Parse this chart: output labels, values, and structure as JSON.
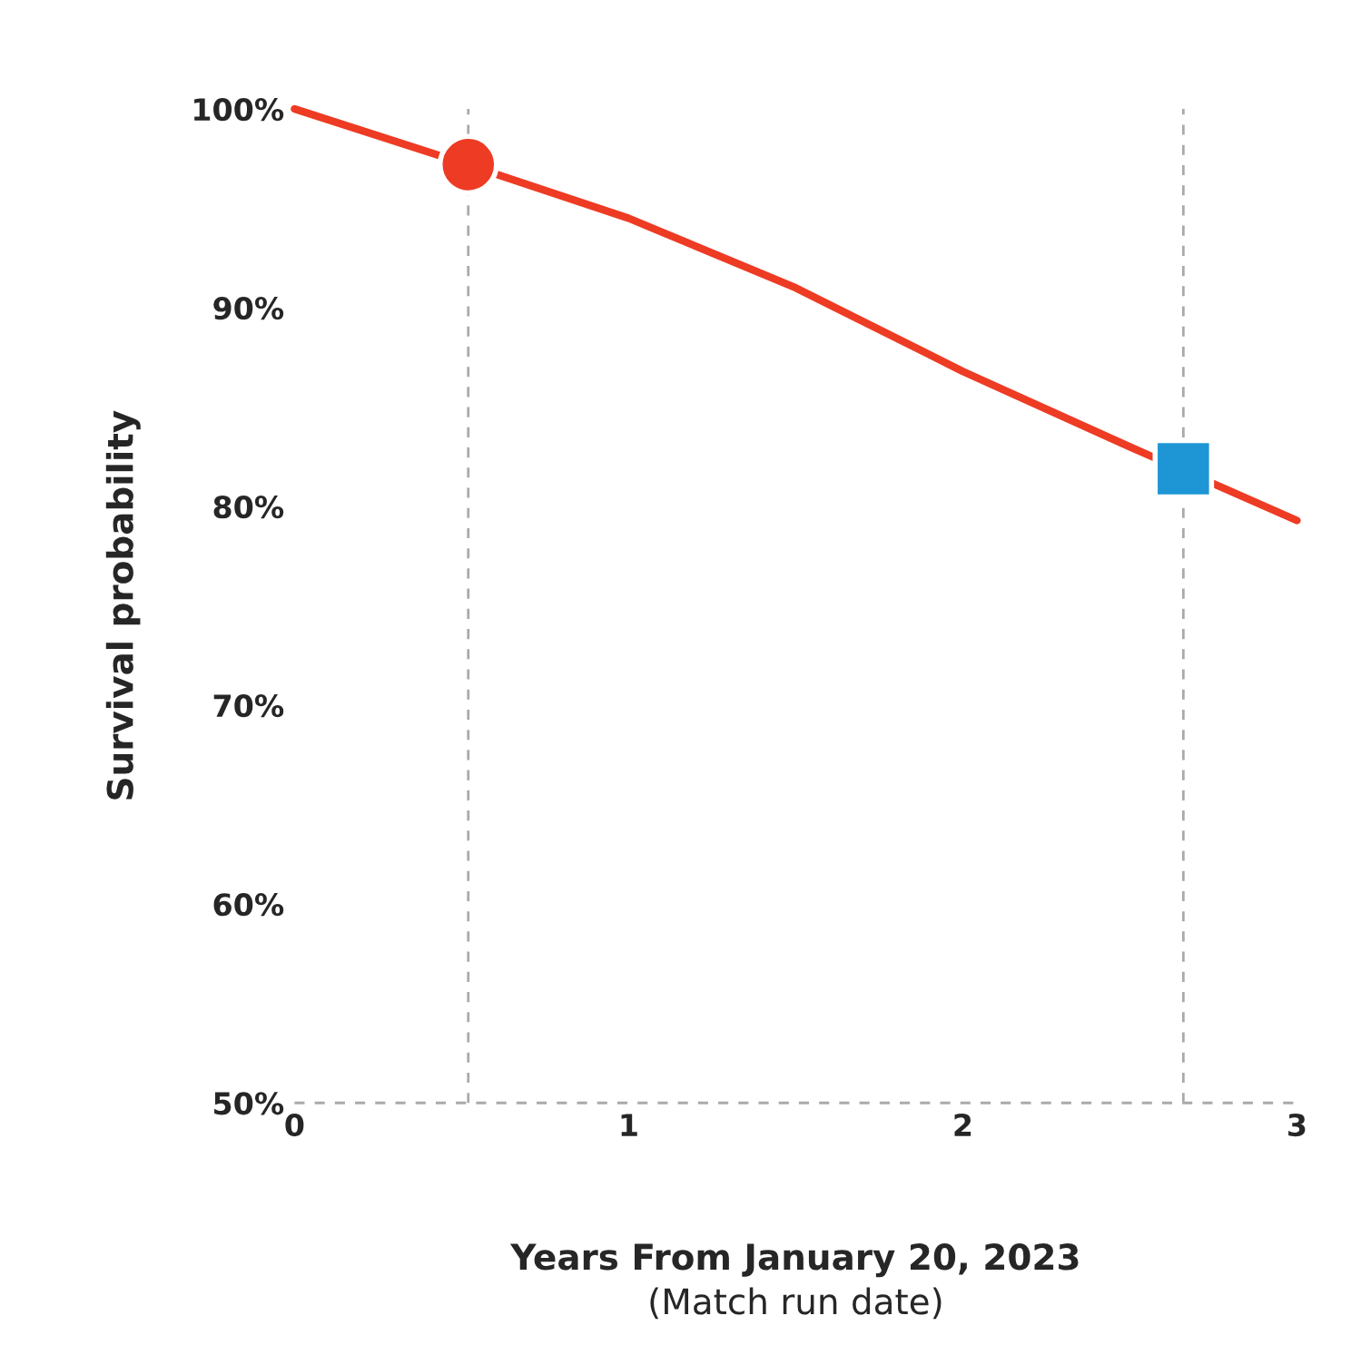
{
  "chart_data": {
    "type": "line",
    "xlabel": "Years From January 20, 2023\n(Match run date)",
    "ylabel": "Survival probability",
    "xlim": [
      0,
      3
    ],
    "xticks": [
      0,
      1,
      2,
      3
    ],
    "ylim": [
      50,
      100
    ],
    "yticks": [
      {
        "value": 50,
        "label": "50%"
      },
      {
        "value": 60,
        "label": "60%"
      },
      {
        "value": 70,
        "label": "70%"
      },
      {
        "value": 80,
        "label": "80%"
      },
      {
        "value": 90,
        "label": "90%"
      },
      {
        "value": 100,
        "label": "100%"
      }
    ],
    "series": [
      {
        "color": "#ee3b24",
        "x": [
          0,
          0.5,
          1,
          1.5,
          2,
          2.5,
          3
        ],
        "values": [
          100,
          97.3,
          94.5,
          91.0,
          86.8,
          83.0,
          79.3
        ]
      },
      {
        "type": "scatter",
        "marker": "circle",
        "color": "#ee3b24",
        "x": [
          0.52
        ],
        "values": [
          97.2
        ]
      },
      {
        "type": "scatter",
        "marker": "square",
        "color": "#1e96d6",
        "x": [
          2.66
        ],
        "values": [
          81.9
        ]
      }
    ],
    "ref_lines": [
      {
        "axis": "x",
        "value": 0.52,
        "color": "#aaaaaa",
        "line_style": "dashed"
      },
      {
        "axis": "x",
        "value": 2.66,
        "color": "#aaaaaa",
        "line_style": "dashed"
      },
      {
        "axis": "y",
        "value": 50,
        "color": "#aaaaaa",
        "line_style": "dashed"
      }
    ],
    "grid": false,
    "legend": false
  }
}
